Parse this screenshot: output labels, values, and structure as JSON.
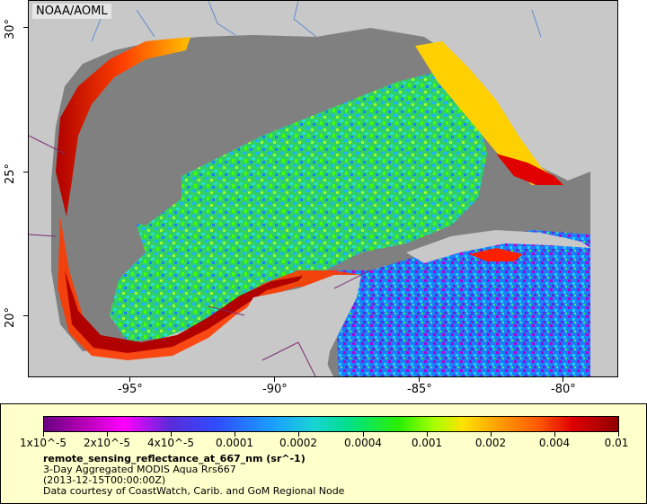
{
  "credit": "NOAA/AOML",
  "y_axis": {
    "ticks": [
      "30°",
      "25°",
      "20°"
    ]
  },
  "x_axis": {
    "ticks": [
      "-95°",
      "-90°",
      "-85°",
      "-80°"
    ]
  },
  "colorbar": {
    "labels": [
      "1x10^-5",
      "2x10^-5",
      "4x10^-5",
      "0.0001",
      "0.0002",
      "0.0004",
      "0.001",
      "0.002",
      "0.004",
      "0.01"
    ],
    "colors": {
      "low": "#6a0080",
      "mid": "#00e08a",
      "high": "#900000"
    }
  },
  "legend": {
    "variable": "remote_sensing_reflectance_at_667_nm (sr^-1)",
    "product": "3-Day Aggregated MODIS Aqua Rrs667",
    "time": "(2013-12-15T00:00:00Z)",
    "source": "Data courtesy of CoastWatch, Carib. and GoM Regional Node"
  },
  "colors": {
    "land": "#c8c8c8",
    "no_data": "#808080",
    "legend_bg": "#ffffcc"
  }
}
